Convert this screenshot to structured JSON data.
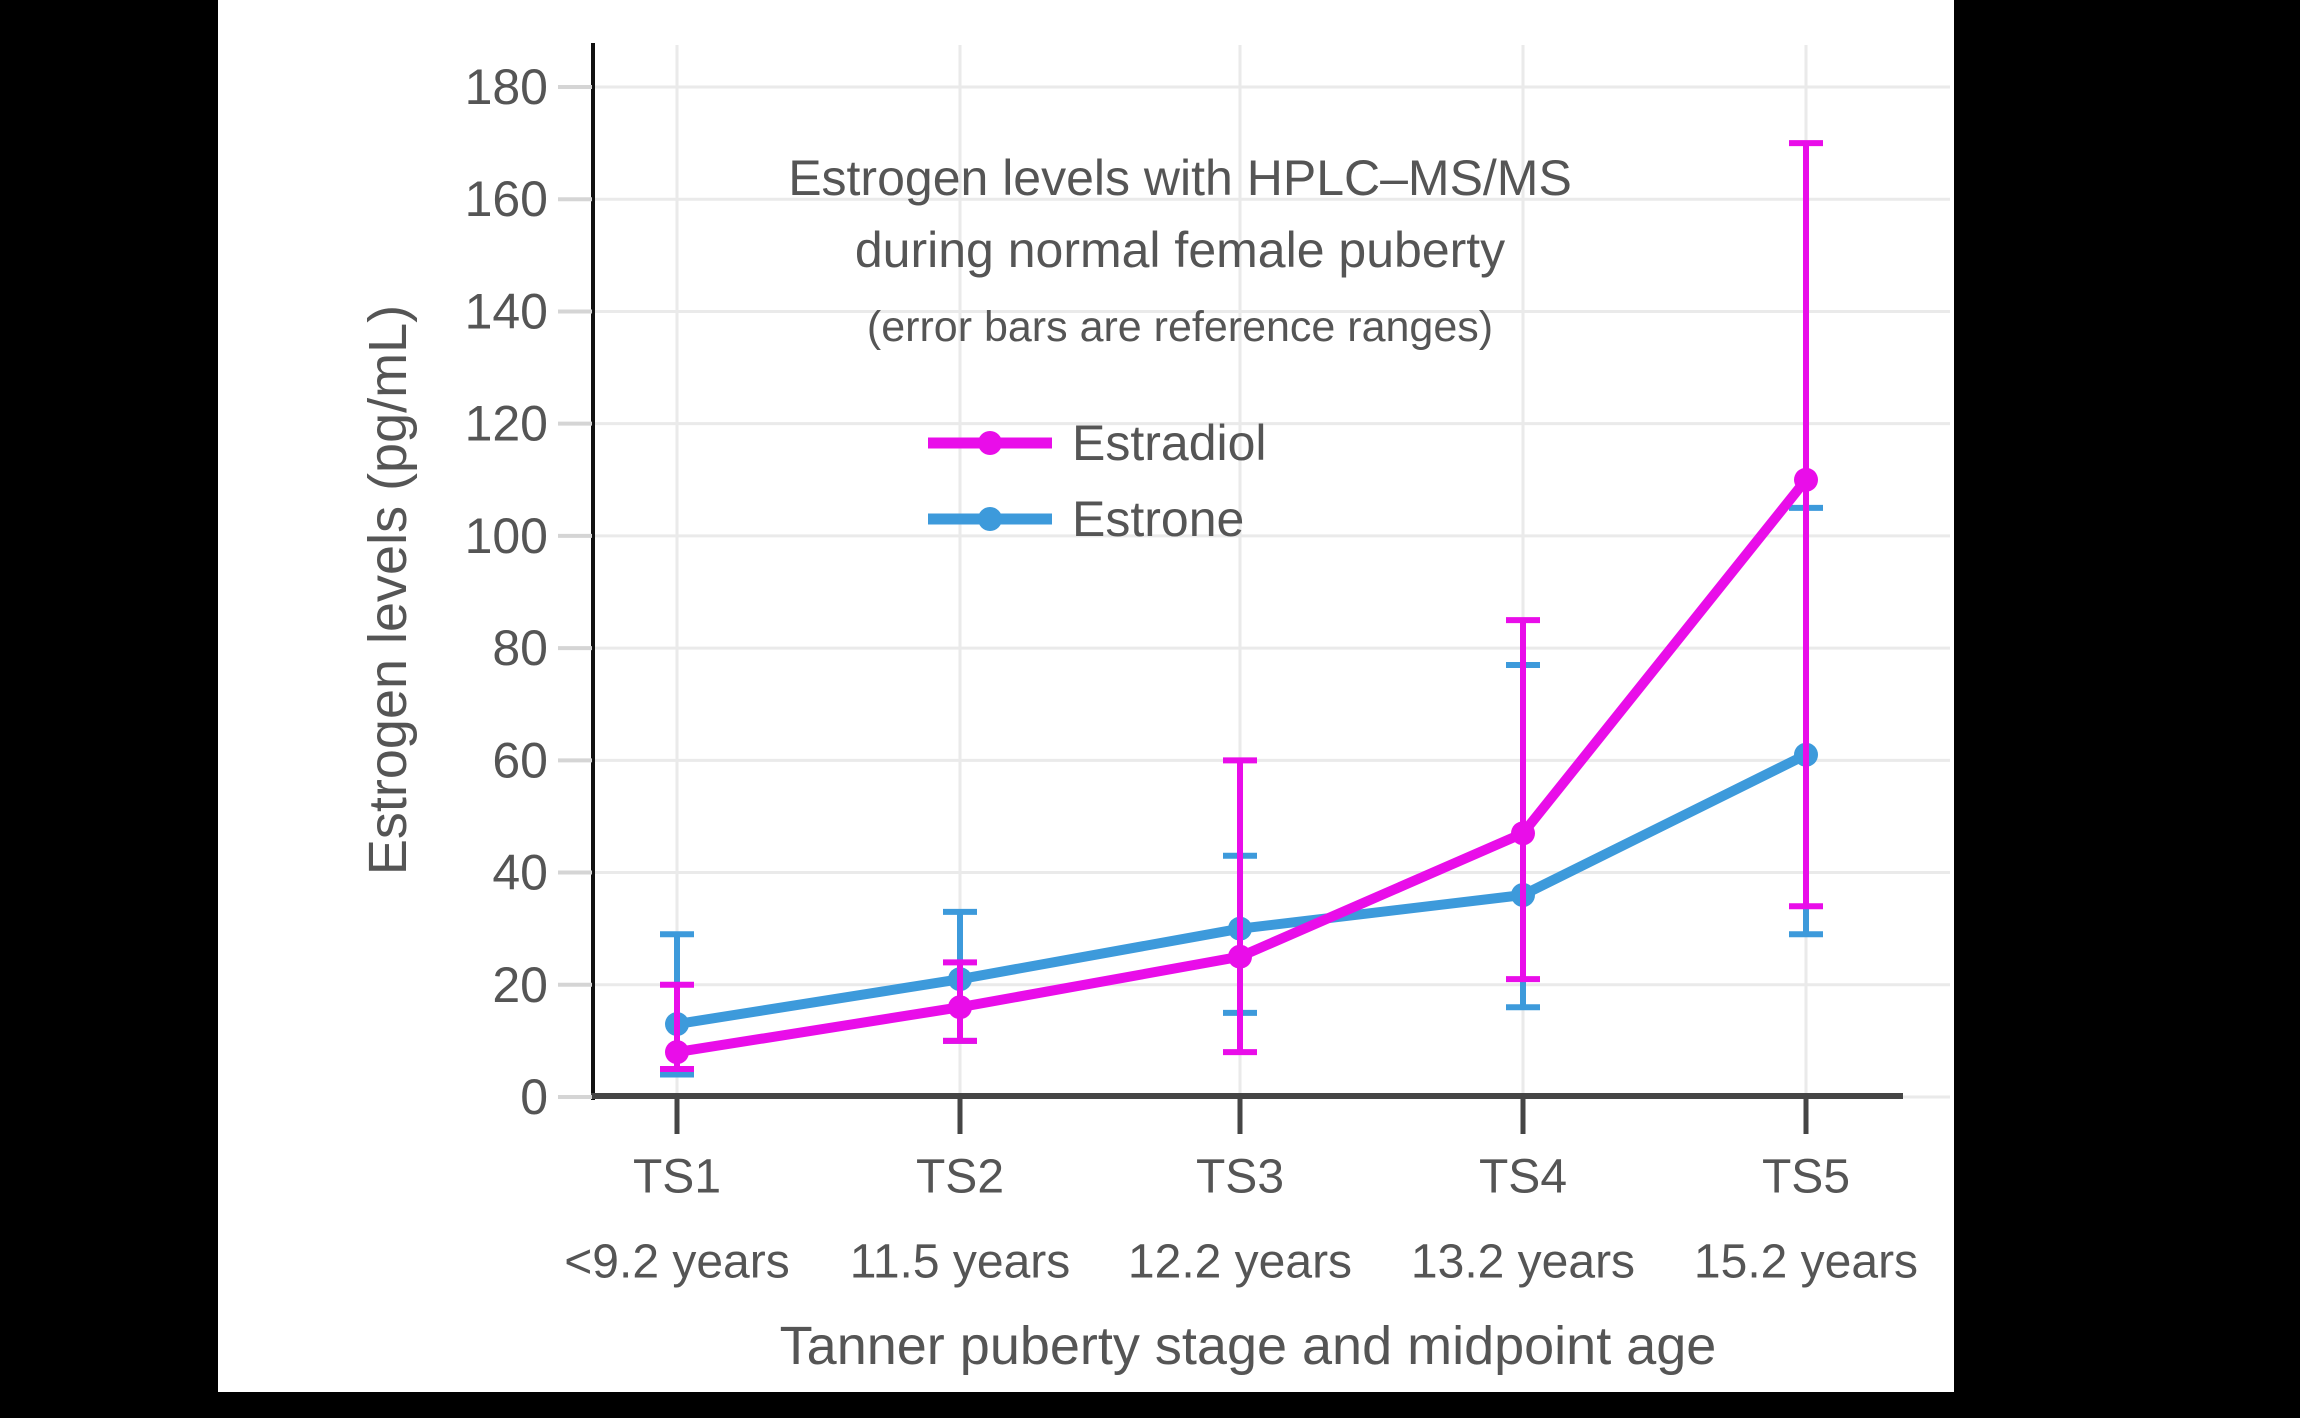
{
  "page": {
    "background": "#000000",
    "panel_background": "#ffffff"
  },
  "chart_data": {
    "type": "line",
    "title": "Estrogen levels with HPLC–MS/MS during normal female puberty",
    "title_line1": "Estrogen levels with HPLC–MS/MS",
    "title_line2": "during normal female puberty",
    "subtitle": "(error bars are reference ranges)",
    "xlabel": "Tanner puberty stage and midpoint age",
    "ylabel": "Estrogen levels (pg/mL)",
    "categories": [
      "TS1",
      "TS2",
      "TS3",
      "TS4",
      "TS5"
    ],
    "category_sublabels": [
      "<9.2 years",
      "11.5 years",
      "12.2 years",
      "13.2 years",
      "15.2 years"
    ],
    "yticks": [
      0,
      20,
      40,
      60,
      80,
      100,
      120,
      140,
      160,
      180
    ],
    "ylim": [
      0,
      180
    ],
    "grid": true,
    "legend_position": "inside-top-left",
    "error_bar_meaning": "reference ranges",
    "series": [
      {
        "name": "Estradiol",
        "color": "#E90DE9",
        "values": [
          8,
          16,
          25,
          47,
          110
        ],
        "range_low": [
          5,
          10,
          8,
          21,
          34
        ],
        "range_high": [
          20,
          24,
          60,
          85,
          170
        ]
      },
      {
        "name": "Estrone",
        "color": "#3D9ADB",
        "values": [
          13,
          21,
          30,
          36,
          61
        ],
        "range_low": [
          4,
          10,
          15,
          16,
          29
        ],
        "range_high": [
          29,
          33,
          43,
          77,
          105
        ]
      }
    ]
  },
  "style_colors": {
    "text": "#555555",
    "grid": "#EAEAEA",
    "tick_mark": "#D5D5D5",
    "x_axis_line": "#454545",
    "y_axis_spine": "#111111"
  }
}
